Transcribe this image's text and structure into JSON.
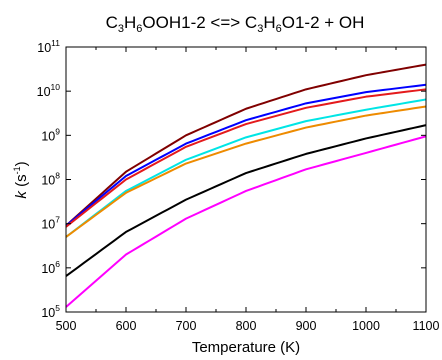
{
  "chart_data": {
    "type": "line",
    "title": {
      "p1": "C",
      "s1": "3",
      "p2": "H",
      "s2": "6",
      "p3": "OOH1-2 <=> C",
      "s3": "3",
      "p4": "H",
      "s4": "6",
      "p5": "O1-2 + OH"
    },
    "xlabel": "Temperature (K)",
    "ylabel": {
      "italic": "k",
      "pre": " (s",
      "sup": "-1",
      "post": ")"
    },
    "x_ticks": [
      "500",
      "600",
      "700",
      "800",
      "900",
      "1000",
      "1100"
    ],
    "y_tick_exponents": [
      "5",
      "6",
      "7",
      "8",
      "9",
      "10",
      "11"
    ],
    "y_tick_base": "10",
    "xlim": [
      500,
      1100
    ],
    "ylim": [
      100000,
      100000000000
    ],
    "y_scale": "log",
    "grid": false,
    "legend": "none",
    "x": [
      500,
      600,
      700,
      800,
      900,
      1000,
      1100
    ],
    "series": [
      {
        "color": "#800000",
        "values": [
          9000000.0,
          150000000.0,
          1000000000.0,
          4000000000.0,
          11000000000.0,
          23000000000.0,
          40000000000.0
        ]
      },
      {
        "color": "#0000ff",
        "values": [
          9000000.0,
          120000000.0,
          650000000.0,
          2200000000.0,
          5300000000.0,
          9500000000.0,
          14000000000.0
        ]
      },
      {
        "color": "#e41a1c",
        "values": [
          8500000.0,
          100000000.0,
          550000000.0,
          1800000000.0,
          4200000000.0,
          7500000000.0,
          11000000000.0
        ]
      },
      {
        "color": "#00e5e5",
        "values": [
          5000000.0,
          55000000.0,
          280000000.0,
          900000000.0,
          2100000000.0,
          3800000000.0,
          6500000000.0
        ]
      },
      {
        "color": "#ee8b00",
        "values": [
          5000000.0,
          50000000.0,
          230000000.0,
          650000000.0,
          1500000000.0,
          2800000000.0,
          4500000000.0
        ]
      },
      {
        "color": "#000000",
        "values": [
          650000.0,
          6500000.0,
          35000000.0,
          140000000.0,
          380000000.0,
          850000000.0,
          1700000000.0
        ]
      },
      {
        "color": "#ff00ff",
        "values": [
          130000.0,
          2000000.0,
          13000000.0,
          55000000.0,
          170000000.0,
          400000000.0,
          950000000.0
        ]
      }
    ]
  }
}
